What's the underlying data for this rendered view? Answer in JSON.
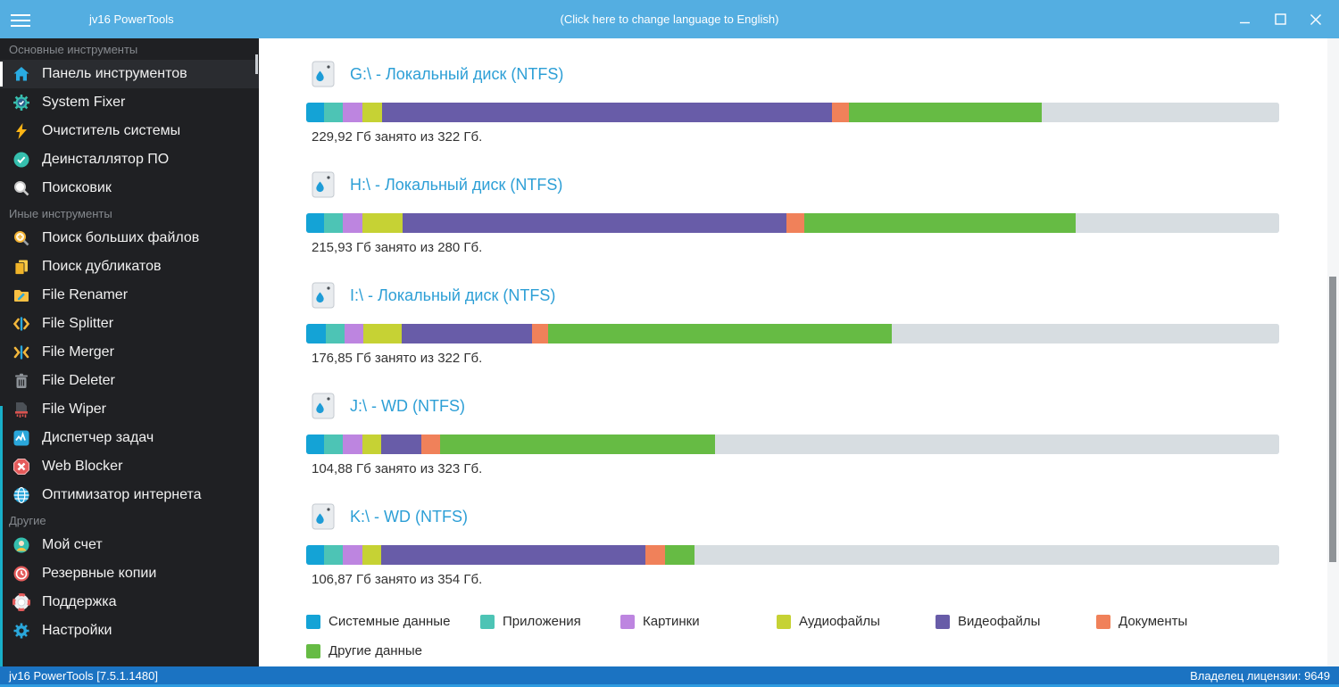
{
  "titlebar": {
    "app_title": "jv16 PowerTools",
    "language_link": "(Click here to change language to English)"
  },
  "sidebar": {
    "sections": [
      {
        "header": "Основные инструменты",
        "items": [
          {
            "label": "Панель инструментов"
          },
          {
            "label": "System Fixer"
          },
          {
            "label": "Очиститель системы"
          },
          {
            "label": "Деинсталлятор ПО"
          },
          {
            "label": "Поисковик"
          }
        ]
      },
      {
        "header": "Иные инструменты",
        "items": [
          {
            "label": "Поиск больших файлов"
          },
          {
            "label": "Поиск дубликатов"
          },
          {
            "label": "File Renamer"
          },
          {
            "label": "File Splitter"
          },
          {
            "label": "File Merger"
          },
          {
            "label": "File Deleter"
          },
          {
            "label": "File Wiper"
          },
          {
            "label": "Диспетчер задач"
          },
          {
            "label": "Web Blocker"
          },
          {
            "label": "Оптимизатор интернета"
          }
        ]
      },
      {
        "header": "Другие",
        "items": [
          {
            "label": "Мой счет"
          },
          {
            "label": "Резервные копии"
          },
          {
            "label": "Поддержка"
          },
          {
            "label": "Настройки"
          }
        ]
      }
    ]
  },
  "main": {
    "disks": [
      {
        "title": "G:\\ - Локальный диск (NTFS)",
        "caption": "229,92 Гб занято из 322 Гб.",
        "segments": [
          1.8,
          2.0,
          2.0,
          2.0,
          46.2,
          1.8,
          19.8,
          24.4
        ]
      },
      {
        "title": "H:\\ - Локальный диск (NTFS)",
        "caption": "215,93 Гб занято из 280 Гб.",
        "segments": [
          1.8,
          2.0,
          2.0,
          4.1,
          39.5,
          1.8,
          27.9,
          20.9
        ]
      },
      {
        "title": "I:\\ - Локальный диск (NTFS)",
        "caption": "176,85 Гб занято из 322 Гб.",
        "segments": [
          2.0,
          1.9,
          2.0,
          3.9,
          13.4,
          1.7,
          35.3,
          39.8
        ]
      },
      {
        "title": "J:\\ - WD (NTFS)",
        "caption": "104,88 Гб занято из 323 Гб.",
        "segments": [
          1.8,
          2.0,
          2.0,
          1.9,
          4.1,
          2.0,
          28.2,
          58.0
        ]
      },
      {
        "title": "K:\\ - WD (NTFS)",
        "caption": "106,87 Гб занято из 354 Гб.",
        "segments": [
          1.8,
          2.0,
          2.0,
          1.9,
          27.2,
          2.0,
          3.0,
          60.1
        ]
      }
    ],
    "legend": [
      {
        "label": "Системные данные",
        "color": "#14A3D6"
      },
      {
        "label": "Приложения",
        "color": "#4DC4B5"
      },
      {
        "label": "Картинки",
        "color": "#BD85E0"
      },
      {
        "label": "Аудиофайлы",
        "color": "#C6D234"
      },
      {
        "label": "Видеофайлы",
        "color": "#685CA8"
      },
      {
        "label": "Документы",
        "color": "#F0815A"
      },
      {
        "label": "Другие данные",
        "color": "#66BB44"
      }
    ],
    "free_color": "#D7DDE1"
  },
  "statusbar": {
    "left": "jv16 PowerTools [7.5.1.1480]",
    "right": "Владелец лицензии: 9649"
  }
}
